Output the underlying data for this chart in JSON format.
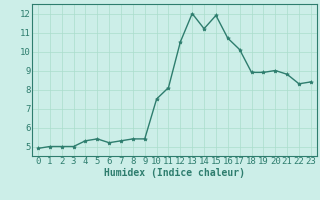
{
  "x": [
    0,
    1,
    2,
    3,
    4,
    5,
    6,
    7,
    8,
    9,
    10,
    11,
    12,
    13,
    14,
    15,
    16,
    17,
    18,
    19,
    20,
    21,
    22,
    23
  ],
  "y": [
    4.9,
    5.0,
    5.0,
    5.0,
    5.3,
    5.4,
    5.2,
    5.3,
    5.4,
    5.4,
    7.5,
    8.1,
    10.5,
    12.0,
    11.2,
    11.9,
    10.7,
    10.1,
    8.9,
    8.9,
    9.0,
    8.8,
    8.3,
    8.4
  ],
  "xlabel": "Humidex (Indice chaleur)",
  "xlim_min": -0.5,
  "xlim_max": 23.5,
  "ylim_min": 4.5,
  "ylim_max": 12.5,
  "yticks": [
    5,
    6,
    7,
    8,
    9,
    10,
    11,
    12
  ],
  "xticks": [
    0,
    1,
    2,
    3,
    4,
    5,
    6,
    7,
    8,
    9,
    10,
    11,
    12,
    13,
    14,
    15,
    16,
    17,
    18,
    19,
    20,
    21,
    22,
    23
  ],
  "line_color": "#2e7d6e",
  "bg_color": "#cceee8",
  "grid_color": "#aaddcc",
  "xlabel_fontsize": 7,
  "tick_fontsize": 6.5,
  "linewidth": 1.0,
  "markersize": 2.8
}
